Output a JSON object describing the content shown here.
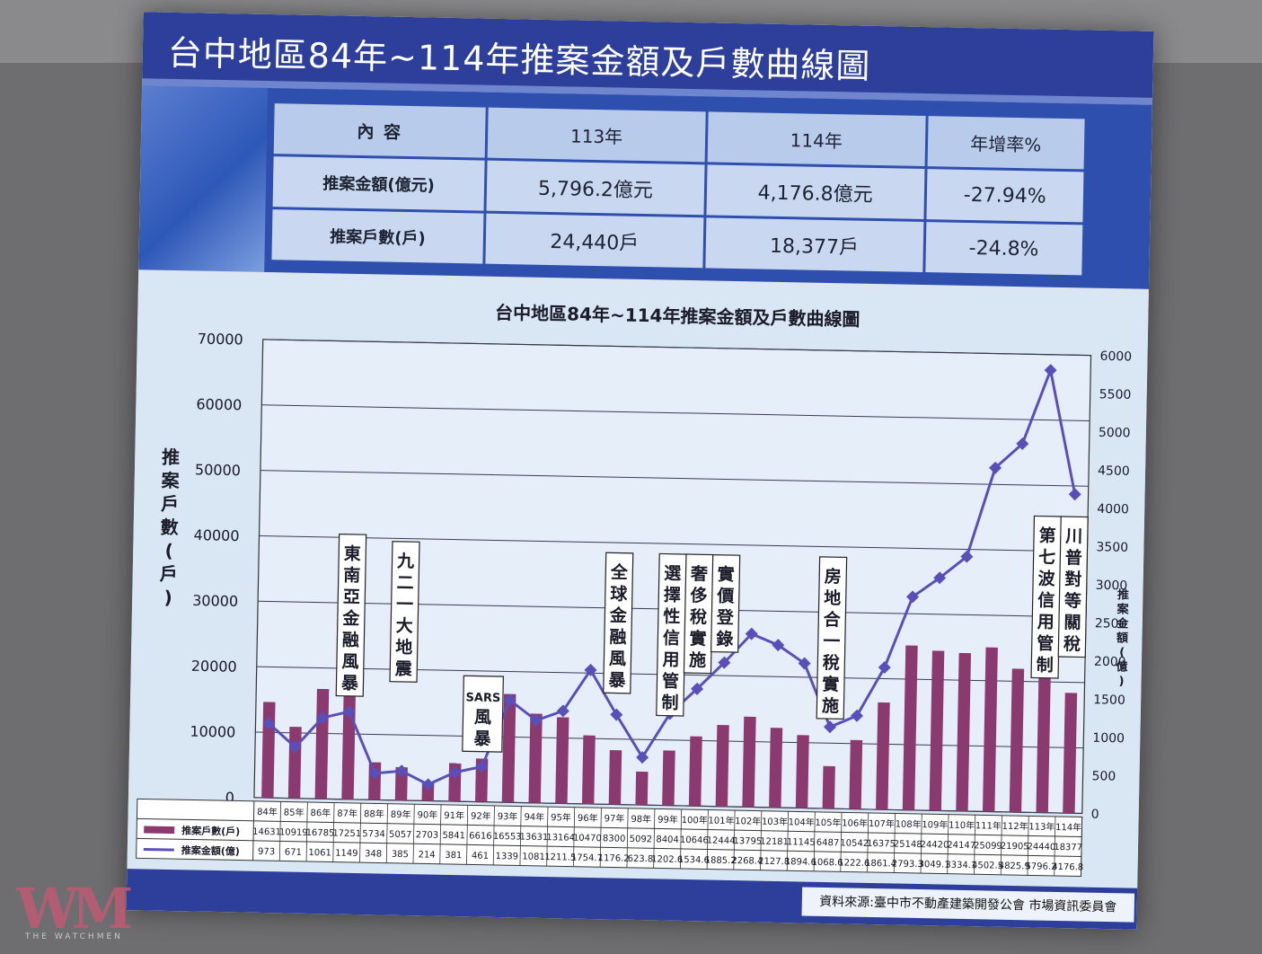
{
  "slide": {
    "title": "台中地區84年~114年推案金額及戶數曲線圖",
    "source": "資料來源:臺中市不動產建築開發公會 市場資訊委員會"
  },
  "summary_table": {
    "headers": [
      "內 容",
      "113年",
      "114年",
      "年增率%"
    ],
    "rows": [
      [
        "推案金額(億元)",
        "5,796.2億元",
        "4,176.8億元",
        "-27.94%"
      ],
      [
        "推案戶數(戶)",
        "24,440戶",
        "18,377戶",
        "-24.8%"
      ]
    ]
  },
  "watermark": {
    "logo": "WM",
    "tagline": "THE WATCHMEN"
  },
  "colors": {
    "bar": "#8a3a6e",
    "line": "#5a4fb8",
    "title_bar": "#2d3f9a"
  },
  "chart_data": {
    "type": "bar",
    "title": "台中地區84年~114年推案金額及戶數曲線圖",
    "ylabel": "推案戶數(戶)",
    "y2label": "推案金額(億)",
    "ylim": [
      0,
      70000
    ],
    "yticks": [
      0,
      10000,
      20000,
      30000,
      40000,
      50000,
      60000,
      70000
    ],
    "y2lim": [
      0,
      6000
    ],
    "y2ticks": [
      0,
      500,
      1000,
      1500,
      2000,
      2500,
      3000,
      3500,
      4000,
      4500,
      5000,
      5500,
      6000
    ],
    "grid": true,
    "categories": [
      "84年",
      "85年",
      "86年",
      "87年",
      "88年",
      "89年",
      "90年",
      "91年",
      "92年",
      "93年",
      "94年",
      "95年",
      "96年",
      "97年",
      "98年",
      "99年",
      "100年",
      "101年",
      "102年",
      "103年",
      "104年",
      "105年",
      "106年",
      "107年",
      "108年",
      "109年",
      "110年",
      "111年",
      "112年",
      "113年",
      "114年"
    ],
    "series": [
      {
        "name": "推案戶數(戶)",
        "type": "bar",
        "axis": "left",
        "values": [
          14631,
          10919,
          16785,
          17251,
          5734,
          5057,
          2703,
          5841,
          6616,
          16553,
          13631,
          13164,
          10470,
          8300,
          5092,
          8404,
          10646,
          12444,
          13795,
          12181,
          11145,
          6487,
          10542,
          16375,
          25148,
          24420,
          24147,
          25099,
          21905,
          24440,
          18377
        ],
        "labels": [
          "14631",
          "10919",
          "16785",
          "17251",
          "5734",
          "5057",
          "2703",
          "5841",
          "6616",
          "16553",
          "13631",
          "13164",
          "10470",
          "8300",
          "5092",
          "8404",
          "10646",
          "12444",
          "13795",
          "12181",
          "11145",
          "6487",
          "10542",
          "16375",
          "25148",
          "24420",
          "24147",
          "25099",
          "21905",
          "24440",
          "18377"
        ]
      },
      {
        "name": "推案金額(億)",
        "type": "line",
        "axis": "right",
        "values": [
          973,
          671,
          1061,
          1149,
          348,
          385,
          214,
          381,
          461,
          1339,
          1081,
          1211.5,
          1754.7,
          1176.2,
          623.8,
          1202.6,
          1534.6,
          1885.2,
          2268.4,
          2127.8,
          1894.6,
          1068.6,
          1222.6,
          1861.4,
          2793.3,
          3049.1,
          3334.1,
          4502.5,
          4825.9,
          5796.2,
          4176.8
        ],
        "labels": [
          "973",
          "671",
          "1061",
          "1149",
          "348",
          "385",
          "214",
          "381",
          "461",
          "1339",
          "1081",
          "1211.5",
          "1754.7",
          "1176.2",
          "623.8",
          "1202.6",
          "1534.6",
          "1885.2",
          "2268.4",
          "2127.8",
          "1894.6",
          "1068.6",
          "1222.6",
          "1861.4",
          "2793.3",
          "3049.1",
          "3334.1",
          "4502.5",
          "4825.9",
          "5796.2",
          "4176.8"
        ]
      }
    ],
    "annotations": [
      {
        "text": "東南亞金融風暴",
        "year": "87年"
      },
      {
        "text": "九二一大地震",
        "year": "89年"
      },
      {
        "text": "SARS風暴",
        "year": "92年"
      },
      {
        "text": "全球金融風暴",
        "year": "97年"
      },
      {
        "text": "選擇性信用管制",
        "year": "99年"
      },
      {
        "text": "奢侈稅實施",
        "year": "100年"
      },
      {
        "text": "實價登錄",
        "year": "101年"
      },
      {
        "text": "房地合一稅實施",
        "year": "105年"
      },
      {
        "text": "第七波信用管制",
        "year": "113年"
      },
      {
        "text": "川普對等關稅",
        "year": "114年"
      }
    ]
  }
}
